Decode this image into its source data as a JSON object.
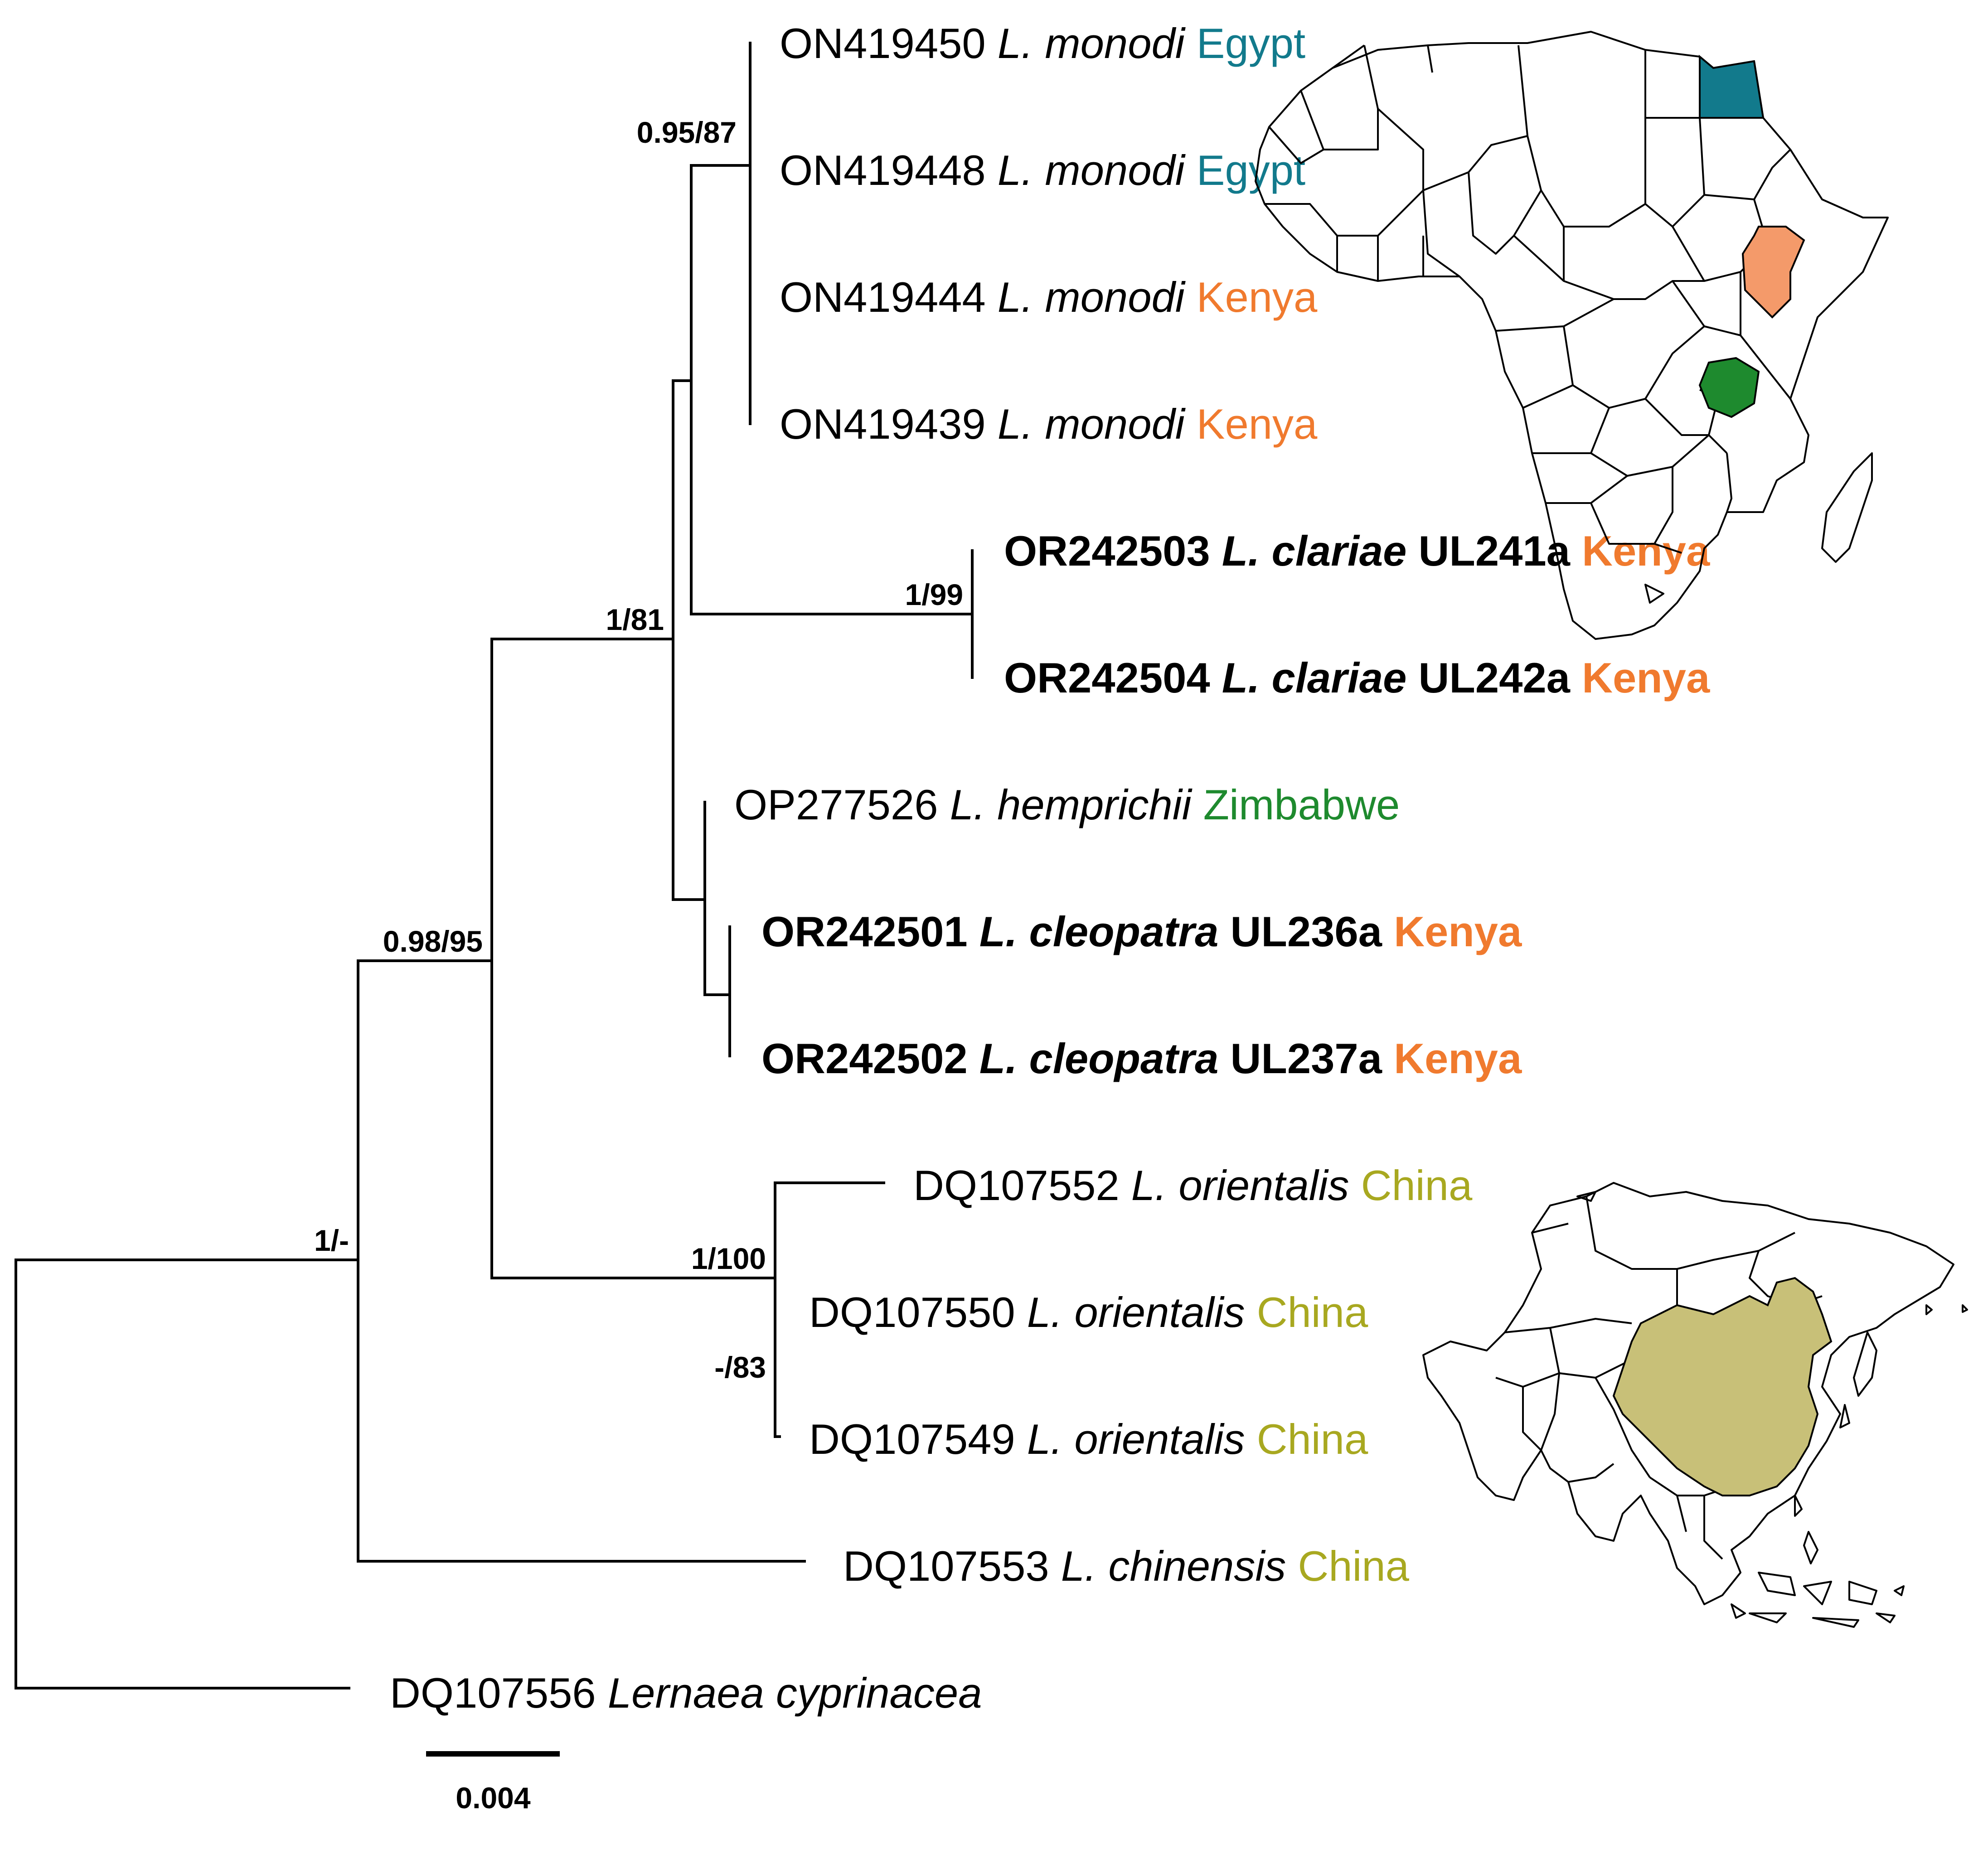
{
  "tree": {
    "taxa": [
      {
        "accession": "ON419450",
        "genus": "L.",
        "species": "monodi",
        "specimen": "",
        "country": "Egypt",
        "bold": false
      },
      {
        "accession": "ON419448",
        "genus": "L.",
        "species": "monodi",
        "specimen": "",
        "country": "Egypt",
        "bold": false
      },
      {
        "accession": "ON419444",
        "genus": "L.",
        "species": "monodi",
        "specimen": "",
        "country": "Kenya",
        "bold": false
      },
      {
        "accession": "ON419439",
        "genus": "L.",
        "species": "monodi",
        "specimen": "",
        "country": "Kenya",
        "bold": false
      },
      {
        "accession": "OR242503",
        "genus": "L.",
        "species": "clariae",
        "specimen": "UL241a",
        "country": "Kenya",
        "bold": true
      },
      {
        "accession": "OR242504",
        "genus": "L.",
        "species": "clariae",
        "specimen": "UL242a",
        "country": "Kenya",
        "bold": true
      },
      {
        "accession": "OP277526",
        "genus": "L.",
        "species": "hemprichii",
        "specimen": "",
        "country": "Zimbabwe",
        "bold": false
      },
      {
        "accession": "OR242501",
        "genus": "L.",
        "species": "cleopatra",
        "specimen": "UL236a",
        "country": "Kenya",
        "bold": true
      },
      {
        "accession": "OR242502",
        "genus": "L.",
        "species": "cleopatra",
        "specimen": "UL237a",
        "country": "Kenya",
        "bold": true
      },
      {
        "accession": "DQ107552",
        "genus": "L.",
        "species": "orientalis",
        "specimen": "",
        "country": "China",
        "bold": false
      },
      {
        "accession": "DQ107550",
        "genus": "L.",
        "species": "orientalis",
        "specimen": "",
        "country": "China",
        "bold": false
      },
      {
        "accession": "DQ107549",
        "genus": "L.",
        "species": "orientalis",
        "specimen": "",
        "country": "China",
        "bold": false
      },
      {
        "accession": "DQ107553",
        "genus": "L.",
        "species": "chinensis",
        "specimen": "",
        "country": "China",
        "bold": false
      },
      {
        "accession": "DQ107556",
        "genus": "Lernaea",
        "species": "cyprinacea",
        "specimen": "",
        "country": "",
        "bold": false
      }
    ],
    "support_values": [
      "0.95/87",
      "1/99",
      "1/81",
      "0.98/95",
      "1/100",
      "-/83",
      "1/-"
    ],
    "scale_bar_label": "0.004"
  },
  "country_colors": {
    "Egypt": "#127a8c",
    "Kenya": "#f07a2e",
    "Zimbabwe": "#1e8a2e",
    "China": "#a8a820"
  },
  "maps": {
    "africa_highlight_colors": [
      "#127a8c",
      "#f49a6a",
      "#1e8a2e"
    ],
    "asia_highlight_color": "#c8c078"
  }
}
